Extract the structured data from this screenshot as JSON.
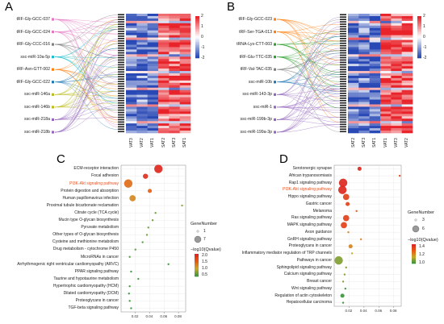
{
  "panels": {
    "A": {
      "label": "A",
      "mirs": [
        {
          "text": "tRF-Gly-GCC-037",
          "color": "#e377c2"
        },
        {
          "text": "tRF-Gly-GCC-024",
          "color": "#e377c2"
        },
        {
          "text": "tRF-Gly-CCC-016",
          "color": "#7f7f7f"
        },
        {
          "text": "ssc-miR-10a-5p",
          "color": "#17becf"
        },
        {
          "text": "tRF-Asn-GTT-002",
          "color": "#ff7f0e"
        },
        {
          "text": "tRF-Gly-GCC-022",
          "color": "#1f77b4"
        },
        {
          "text": "ssc-miR-146a",
          "color": "#bcbd22"
        },
        {
          "text": "ssc-miR-146b",
          "color": "#bcbd22"
        },
        {
          "text": "ssc-miR-218a",
          "color": "#9467bd"
        },
        {
          "text": "ssc-miR-218b",
          "color": "#9467bd"
        }
      ],
      "samples": [
        "VAT3",
        "VAT2",
        "VAT1",
        "SAT2",
        "SAT3",
        "SAT1"
      ],
      "colorbar": [
        "2",
        "1",
        "0",
        "-1",
        "-2"
      ]
    },
    "B": {
      "label": "B",
      "mirs": [
        {
          "text": "tRF-Gly-GCC-023",
          "color": "#ff7f0e"
        },
        {
          "text": "tRF-Ser-TGA-013",
          "color": "#ff7f0e"
        },
        {
          "text": "tRNA-Lys-CTT-003",
          "color": "#2ca02c"
        },
        {
          "text": "tRF-Glu-TTC-035",
          "color": "#2ca02c"
        },
        {
          "text": "tRF-Val-TAC-035",
          "color": "#7f7f7f"
        },
        {
          "text": "ssc-miR-10b",
          "color": "#1f77b4"
        },
        {
          "text": "ssc-miR-143-3p",
          "color": "#9467bd"
        },
        {
          "text": "ssc-miR-1",
          "color": "#9467bd"
        },
        {
          "text": "ssc-miR-199b-3p",
          "color": "#9467bd"
        },
        {
          "text": "ssc-miR-199a-3p",
          "color": "#9467bd"
        }
      ],
      "samples": [
        "SAT2",
        "SAT3",
        "SAT1",
        "VAT1",
        "VAT3",
        "VAT2"
      ],
      "colorbar": [
        "2",
        "1",
        "0",
        "-1",
        "-2"
      ]
    },
    "C": {
      "label": "C",
      "xticks": [
        "0.02",
        "0.04",
        "0.06",
        "0.08"
      ],
      "xmin": 0.0,
      "xmax": 0.09,
      "legend": {
        "gene_title": "GeneNumber",
        "gene_values": [
          "1",
          "7"
        ],
        "q_title": "−log10(Qvalue)",
        "q_values": [
          "2.0",
          "1.5",
          "1.0",
          "0.5"
        ]
      }
    },
    "D": {
      "label": "D",
      "xticks": [
        "0.02",
        "0.04",
        "0.06",
        "0.08"
      ],
      "xmin": 0.0,
      "xmax": 0.09,
      "legend": {
        "gene_title": "GeneNumber",
        "gene_values": [
          "3",
          "6"
        ],
        "q_title": "−log10(Qvalue)",
        "q_values": [
          "1.4",
          "1.2",
          "1.0"
        ]
      }
    }
  },
  "chart_data": [
    {
      "type": "scatter",
      "title": "",
      "xlabel": "",
      "ylabel": "",
      "xlim": [
        0.0,
        0.09
      ],
      "highlight_color": "#e8501e",
      "categories": [
        "ECM-receptor interaction",
        "Focal adhesion",
        "PI3K-Akt signaling pathway",
        "Protein digestion and absorption",
        "Human papillomavirus infection",
        "Proximal tubule bicarbonate reclamation",
        "Citrate cycle (TCA cycle)",
        "Mucin type O-glycan biosynthesis",
        "Pyruvate metabolism",
        "Other types of O-glycan biosynthesis",
        "Cysteine and methionine metabolism",
        "Drug metabolism - cytochrome P450",
        "MicroRNAs in cancer",
        "Arrhythmogenic right ventricular cardiomyopathy (ARVC)",
        "PPAR signaling pathway",
        "Taurine and hypotaurine metabolism",
        "Hypertrophic cardiomyopathy (HCM)",
        "Dilated cardiomyopathy (DCM)",
        "Proteoglycans in cancer",
        "TGF-beta signaling pathway"
      ],
      "highlighted": [
        2
      ],
      "x": [
        0.052,
        0.034,
        0.01,
        0.04,
        0.016,
        0.085,
        0.048,
        0.044,
        0.038,
        0.036,
        0.03,
        0.02,
        0.012,
        0.066,
        0.014,
        0.024,
        0.012,
        0.011,
        0.012,
        0.014
      ],
      "gene_number": [
        7,
        4,
        7,
        3,
        5,
        1,
        1,
        1,
        1,
        1,
        1,
        1,
        1,
        1,
        1,
        1,
        1,
        1,
        1,
        1
      ],
      "neg_log10_q": [
        2.2,
        2.1,
        1.5,
        1.6,
        1.3,
        0.8,
        0.7,
        0.7,
        0.7,
        0.7,
        0.6,
        0.6,
        0.6,
        0.5,
        0.5,
        0.5,
        0.5,
        0.5,
        0.5,
        0.5
      ]
    },
    {
      "type": "scatter",
      "title": "",
      "xlabel": "",
      "ylabel": "",
      "xlim": [
        0.0,
        0.09
      ],
      "highlight_color": "#e8501e",
      "categories": [
        "Serotonergic synapse",
        "African trypanosomiasis",
        "Rap1 signaling pathway",
        "PI3K-Akt signaling pathway",
        "Hippo signaling pathway",
        "Gastric cancer",
        "Melanoma",
        "Ras signaling pathway",
        "MAPK signaling pathway",
        "Axon guidance",
        "GnRH signaling pathway",
        "Proteoglycans in cancer",
        "Inflammatory mediator regulation of TRP channels",
        "Pathways in cancer",
        "Sphingolipid signaling pathway",
        "Calcium signaling pathway",
        "Breast cancer",
        "Wnt signaling pathway",
        "Regulation of actin cytoskeleton",
        "Hepatocellular carcinoma"
      ],
      "highlighted": [
        3
      ],
      "x": [
        0.034,
        0.088,
        0.012,
        0.011,
        0.016,
        0.018,
        0.03,
        0.016,
        0.013,
        0.019,
        0.036,
        0.022,
        0.024,
        0.006,
        0.016,
        0.014,
        0.012,
        0.015,
        0.011,
        0.012
      ],
      "gene_number": [
        4,
        3,
        6,
        6,
        5,
        4,
        3,
        5,
        5,
        3,
        3,
        4,
        3,
        6,
        3,
        3,
        3,
        3,
        4,
        3
      ],
      "neg_log10_q": [
        1.5,
        1.4,
        1.5,
        1.5,
        1.4,
        1.4,
        1.3,
        1.4,
        1.4,
        1.2,
        1.2,
        1.2,
        1.1,
        1.0,
        1.0,
        1.0,
        1.0,
        0.9,
        0.9,
        0.9
      ]
    }
  ]
}
